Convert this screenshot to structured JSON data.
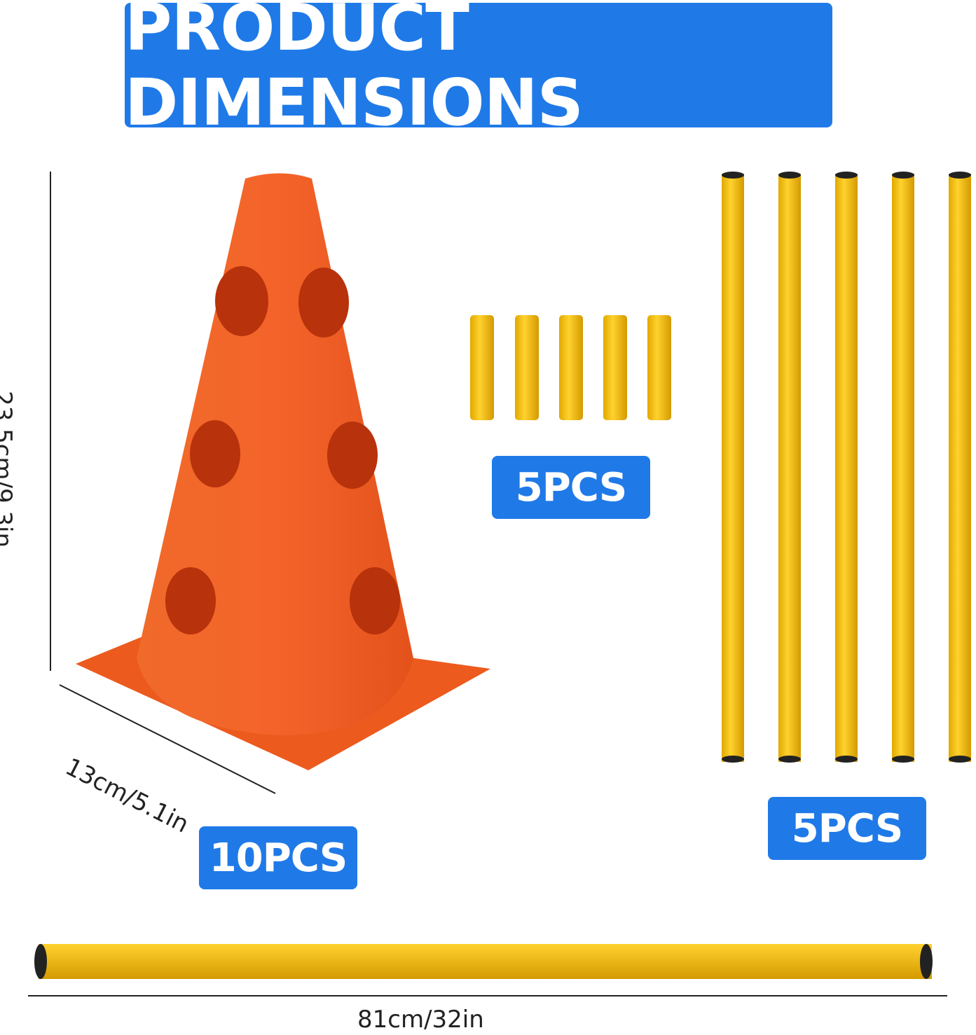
{
  "header": {
    "title": "PRODUCT DIMENSIONS"
  },
  "labels": {
    "cone_height": "23.5cm/9.3in",
    "cone_width": "13cm/5.1in",
    "pole_length": "81cm/32in"
  },
  "badges": {
    "cones": "10PCS",
    "connectors": "5PCS",
    "poles": "5PCS"
  }
}
